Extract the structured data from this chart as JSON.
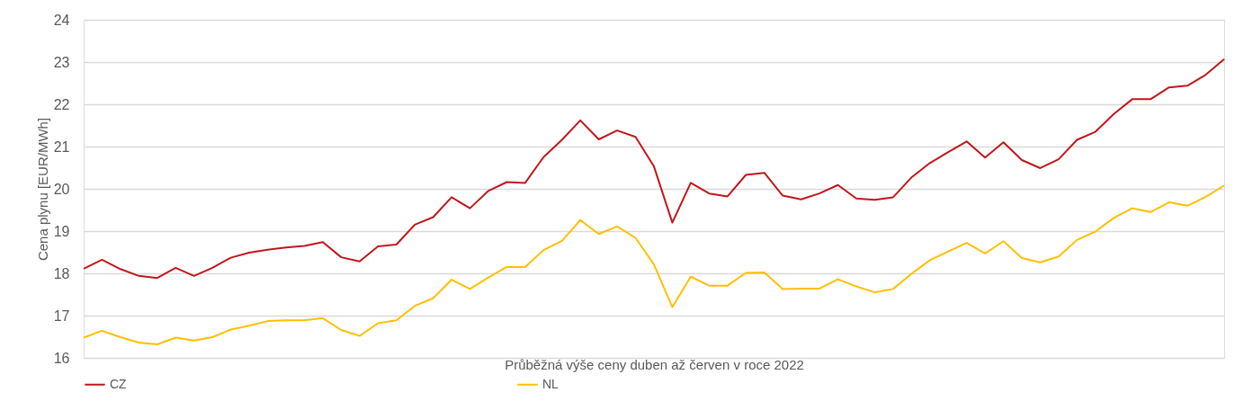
{
  "chart_data": {
    "type": "line",
    "xlabel": "Průběžná výše ceny duben až červen v roce 2022",
    "ylabel": "Cena plynu [EUR/MWh]",
    "categories": [
      null,
      null,
      null,
      null,
      null,
      null,
      null,
      null,
      null,
      null,
      null,
      null,
      null,
      null,
      null,
      null,
      null,
      null,
      null,
      null,
      null,
      null,
      null,
      null,
      null,
      null,
      null,
      null,
      null,
      null,
      null,
      null,
      null,
      null,
      null,
      null,
      null,
      null,
      null,
      null,
      null,
      null,
      null,
      null,
      null,
      null,
      null,
      null,
      null,
      null,
      null,
      null,
      null,
      null,
      null,
      null,
      null,
      null,
      null,
      null,
      null,
      null,
      null
    ],
    "series": [
      {
        "name": "CZ",
        "color": "#c0171c",
        "values": [
          18.11,
          18.32,
          18.1,
          17.94,
          17.89,
          18.13,
          17.94,
          18.13,
          18.37,
          18.49,
          18.56,
          18.61,
          18.65,
          18.74,
          18.38,
          18.28,
          18.64,
          18.68,
          19.15,
          19.33,
          19.8,
          19.54,
          19.95,
          20.16,
          20.14,
          20.75,
          21.16,
          21.62,
          21.17,
          21.38,
          21.23,
          20.53,
          19.2,
          20.14,
          19.89,
          19.82,
          20.33,
          20.38,
          19.84,
          19.75,
          19.89,
          20.09,
          19.77,
          19.74,
          19.8,
          20.27,
          20.61,
          20.87,
          21.12,
          20.74,
          21.1,
          20.68,
          20.49,
          20.7,
          21.16,
          21.35,
          21.77,
          22.12,
          22.12,
          22.4,
          22.44,
          22.7,
          23.07
        ]
      },
      {
        "name": "NL",
        "color": "#ffc000",
        "values": [
          16.48,
          16.64,
          16.49,
          16.36,
          16.32,
          16.48,
          16.41,
          16.49,
          16.67,
          16.76,
          16.87,
          16.89,
          16.89,
          16.94,
          16.66,
          16.52,
          16.82,
          16.89,
          17.23,
          17.41,
          17.85,
          17.63,
          17.9,
          18.15,
          18.15,
          18.55,
          18.77,
          19.26,
          18.93,
          19.11,
          18.84,
          18.21,
          17.2,
          17.92,
          17.71,
          17.71,
          18.01,
          18.02,
          17.63,
          17.64,
          17.64,
          17.86,
          17.69,
          17.55,
          17.63,
          17.99,
          18.31,
          18.52,
          18.72,
          18.47,
          18.76,
          18.36,
          18.26,
          18.4,
          18.79,
          18.99,
          19.31,
          19.54,
          19.45,
          19.68,
          19.6,
          19.81,
          20.08
        ]
      }
    ],
    "ylim": [
      16,
      24
    ],
    "yticks": [
      16,
      17,
      18,
      19,
      20,
      21,
      22,
      23,
      24
    ],
    "grid": "y",
    "legend": "bottom",
    "tick_labels": "y",
    "marker": "none",
    "line_style": "solid"
  }
}
